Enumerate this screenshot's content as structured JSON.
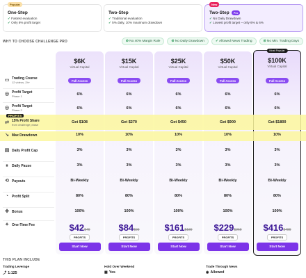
{
  "plans": [
    {
      "badge": "Popular",
      "name": "One-Step",
      "pill": "",
      "features": [
        "Fastest evaluation",
        "Only 8% profit target"
      ],
      "active": false
    },
    {
      "badge": "",
      "name": "Two-Step",
      "pill": "",
      "features": [
        "Traditional evaluation",
        "5% daily, 10% maximum drawdown"
      ],
      "active": false
    },
    {
      "badge": "New",
      "name": "Two-Step",
      "pill": "Pro",
      "features": [
        "No Daily Drawdown",
        "Lowest profit target – only 6% & 6%"
      ],
      "active": true
    }
  ],
  "why": {
    "title": "WHY TO CHOOSE CHALLENGE PRO",
    "pills": [
      "No 40% Margin Rule",
      "No Daily Drawdown",
      "Allowed News Trading",
      "No Min. Trading Days"
    ]
  },
  "columns": [
    {
      "amount": "$6K",
      "caption": "Virtual Capital",
      "featured": false,
      "most": ""
    },
    {
      "amount": "$15K",
      "caption": "Virtual Capital",
      "featured": false,
      "most": ""
    },
    {
      "amount": "$25K",
      "caption": "Virtual Capital",
      "featured": false,
      "most": ""
    },
    {
      "amount": "$50K",
      "caption": "Virtual Capital",
      "featured": false,
      "most": ""
    },
    {
      "amount": "$100K",
      "caption": "Virtual Capital",
      "featured": true,
      "most": "Most Popular"
    }
  ],
  "rows": {
    "trading_course": {
      "label": "Trading Course",
      "sub": "12 videos, 2h+",
      "value": "Full Access"
    },
    "pt1": {
      "label": "Profit Target",
      "sub": "Phase 1",
      "values": [
        "6%",
        "6%",
        "6%",
        "6%",
        "6%"
      ]
    },
    "pt2": {
      "label": "Profit Target",
      "sub": "Phase 2",
      "values": [
        "6%",
        "6%",
        "6%",
        "6%",
        "6%"
      ]
    },
    "share": {
      "tag": "PROFITS",
      "label": "15% Profit Share",
      "sub": "from challenge phase",
      "values": [
        "Get $108",
        "Get $270",
        "Get $450",
        "Get $900",
        "Get $1800"
      ]
    },
    "maxdd": {
      "label": "Max Drawdown",
      "values": [
        "10%",
        "10%",
        "10%",
        "10%",
        "10%"
      ]
    },
    "daily_cap": {
      "label": "Daily Profit Cap",
      "values": [
        "3%",
        "3%",
        "3%",
        "3%",
        "3%"
      ]
    },
    "daily_pause": {
      "label": "Daily Pause",
      "values": [
        "3%",
        "3%",
        "3%",
        "3%",
        "3%"
      ]
    },
    "payouts": {
      "label": "Payouts",
      "values": [
        "Bi-Weekly",
        "Bi-Weekly",
        "Bi-Weekly",
        "Bi-Weekly",
        "Bi-Weekly"
      ]
    },
    "split": {
      "label": "Profit Split",
      "values": [
        "80%",
        "80%",
        "80%",
        "80%",
        "80%"
      ]
    },
    "bonus": {
      "label": "Bonus",
      "values": [
        "100%",
        "100%",
        "100%",
        "100%",
        "100%"
      ]
    },
    "fee": {
      "label": "One-Time Fee",
      "prices": [
        "$42",
        "$84",
        "$161",
        "$229",
        "$416"
      ],
      "old": [
        "$49",
        "$99",
        "$189",
        "$269",
        "$489"
      ],
      "profits_label": "PROFITS",
      "start_label": "Start Now"
    }
  },
  "include": {
    "title": "THIS PLAN INCLUDE",
    "items": [
      {
        "title": "Trading Leverage",
        "value": "1:125"
      },
      {
        "title": "Hold Over Weekend",
        "value": "Yes"
      },
      {
        "title": "Trade Through News",
        "value": "Allowed"
      }
    ]
  },
  "colors": {
    "accent": "#7c34e8",
    "highlight": "#fcf79e",
    "check": "#1a8f4a"
  }
}
